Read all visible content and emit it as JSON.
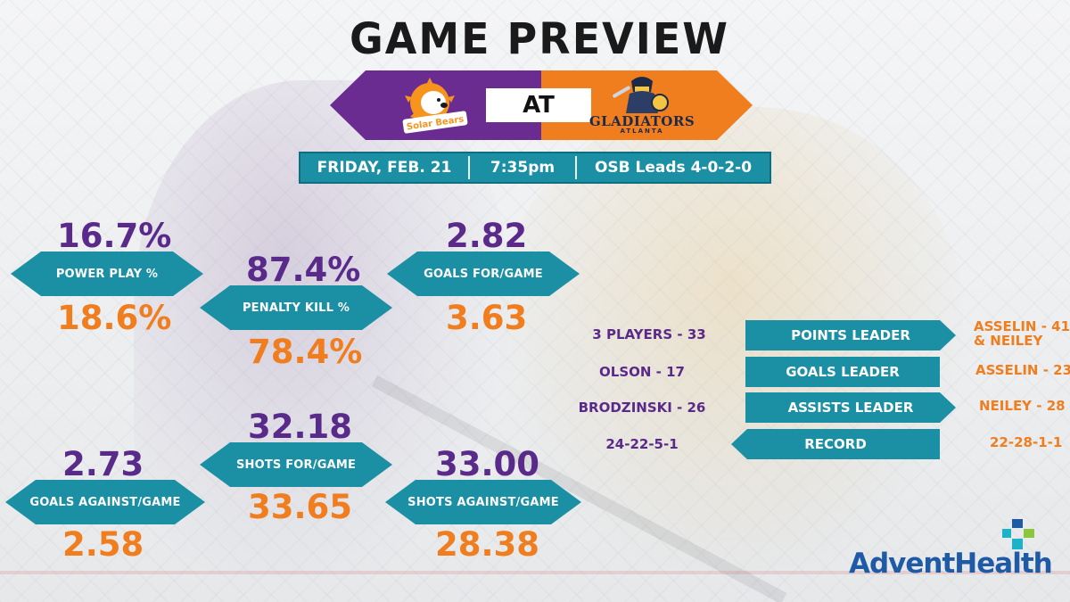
{
  "title": "GAME PREVIEW",
  "matchup": {
    "home_label": "AT",
    "away_team_logo": "solar-bears-logo",
    "home_team_logo": "gladiators-logo",
    "home_team_word": "GLADIATORS",
    "home_team_city": "ATLANTA",
    "colors": {
      "away": "#6a2c91",
      "home": "#f07d1e",
      "accent": "#1b8fa3"
    }
  },
  "info": {
    "date": "FRIDAY, FEB. 21",
    "time": "7:35pm",
    "series": "OSB Leads 4-0-2-0"
  },
  "stats": {
    "power_play": {
      "label": "POWER PLAY %",
      "away": "16.7%",
      "home": "18.6%"
    },
    "penalty_kill": {
      "label": "PENALTY KILL %",
      "away": "87.4%",
      "home": "78.4%"
    },
    "goals_for": {
      "label": "GOALS FOR/GAME",
      "away": "2.82",
      "home": "3.63"
    },
    "goals_against": {
      "label": "GOALS AGAINST/GAME",
      "away": "2.73",
      "home": "2.58"
    },
    "shots_for": {
      "label": "SHOTS FOR/GAME",
      "away": "32.18",
      "home": "33.65"
    },
    "shots_against": {
      "label": "SHOTS AGAINST/GAME",
      "away": "33.00",
      "home": "28.38"
    }
  },
  "leaders": [
    {
      "label": "POINTS LEADER",
      "away": "3 PLAYERS - 33",
      "home_line1": "ASSELIN - 41",
      "home_line2": "& NEILEY"
    },
    {
      "label": "GOALS LEADER",
      "away": "OLSON - 17",
      "home_line1": "ASSELIN - 23",
      "home_line2": ""
    },
    {
      "label": "ASSISTS LEADER",
      "away": "BRODZINSKI - 26",
      "home_line1": "NEILEY - 28",
      "home_line2": ""
    },
    {
      "label": "RECORD",
      "away": "24-22-5-1",
      "home_line1": "22-28-1-1",
      "home_line2": ""
    }
  ],
  "sponsor": {
    "name": "AdventHealth"
  }
}
